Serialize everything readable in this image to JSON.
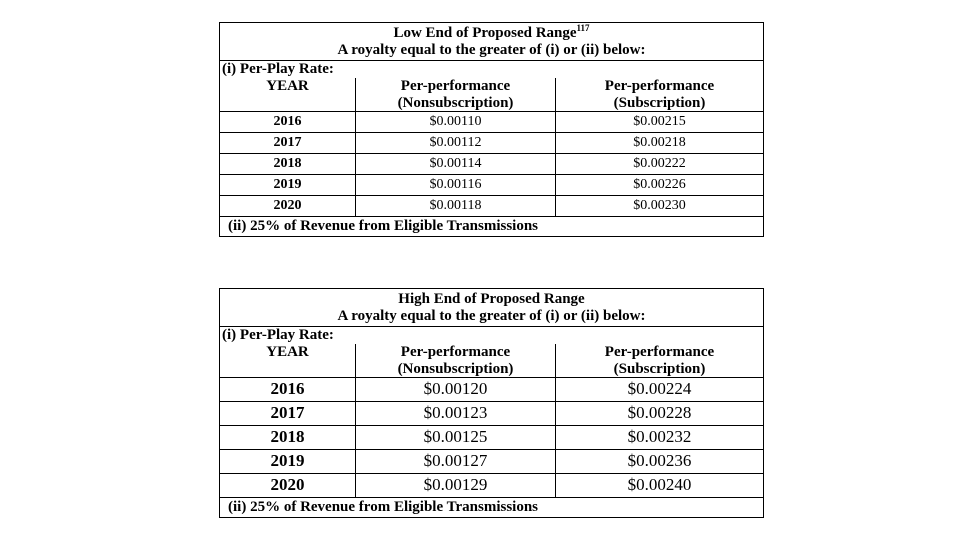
{
  "low_table": {
    "title": "Low End of Proposed Range",
    "footnote": "117",
    "subtitle": "A royalty equal to the greater of (i) or (ii) below:",
    "per_play_label": "(i) Per-Play Rate:",
    "year_header": "YEAR",
    "nonsub_header_1": "Per-performance",
    "nonsub_header_2": "(Nonsubscription)",
    "sub_header_1": "Per-performance",
    "sub_header_2": "(Subscription)",
    "rows": [
      {
        "year": "2016",
        "nonsub": "$0.00110",
        "sub": "$0.00215"
      },
      {
        "year": "2017",
        "nonsub": "$0.00112",
        "sub": "$0.00218"
      },
      {
        "year": "2018",
        "nonsub": "$0.00114",
        "sub": "$0.00222"
      },
      {
        "year": "2019",
        "nonsub": "$0.00116",
        "sub": "$0.00226"
      },
      {
        "year": "2020",
        "nonsub": "$0.00118",
        "sub": "$0.00230"
      }
    ],
    "revenue_label": "(ii) 25% of Revenue from Eligible Transmissions"
  },
  "high_table": {
    "title": "High End of Proposed Range",
    "subtitle": "A royalty equal to the greater of (i) or (ii) below:",
    "per_play_label": "(i) Per-Play Rate:",
    "year_header": "YEAR",
    "nonsub_header_1": "Per-performance",
    "nonsub_header_2": "(Nonsubscription)",
    "sub_header_1": "Per-performance",
    "sub_header_2": "(Subscription)",
    "rows": [
      {
        "year": "2016",
        "nonsub": "$0.00120",
        "sub": "$0.00224"
      },
      {
        "year": "2017",
        "nonsub": "$0.00123",
        "sub": "$0.00228"
      },
      {
        "year": "2018",
        "nonsub": "$0.00125",
        "sub": "$0.00232"
      },
      {
        "year": "2019",
        "nonsub": "$0.00127",
        "sub": "$0.00236"
      },
      {
        "year": "2020",
        "nonsub": "$0.00129",
        "sub": "$0.00240"
      }
    ],
    "revenue_label": "(ii) 25% of Revenue from Eligible Transmissions"
  }
}
